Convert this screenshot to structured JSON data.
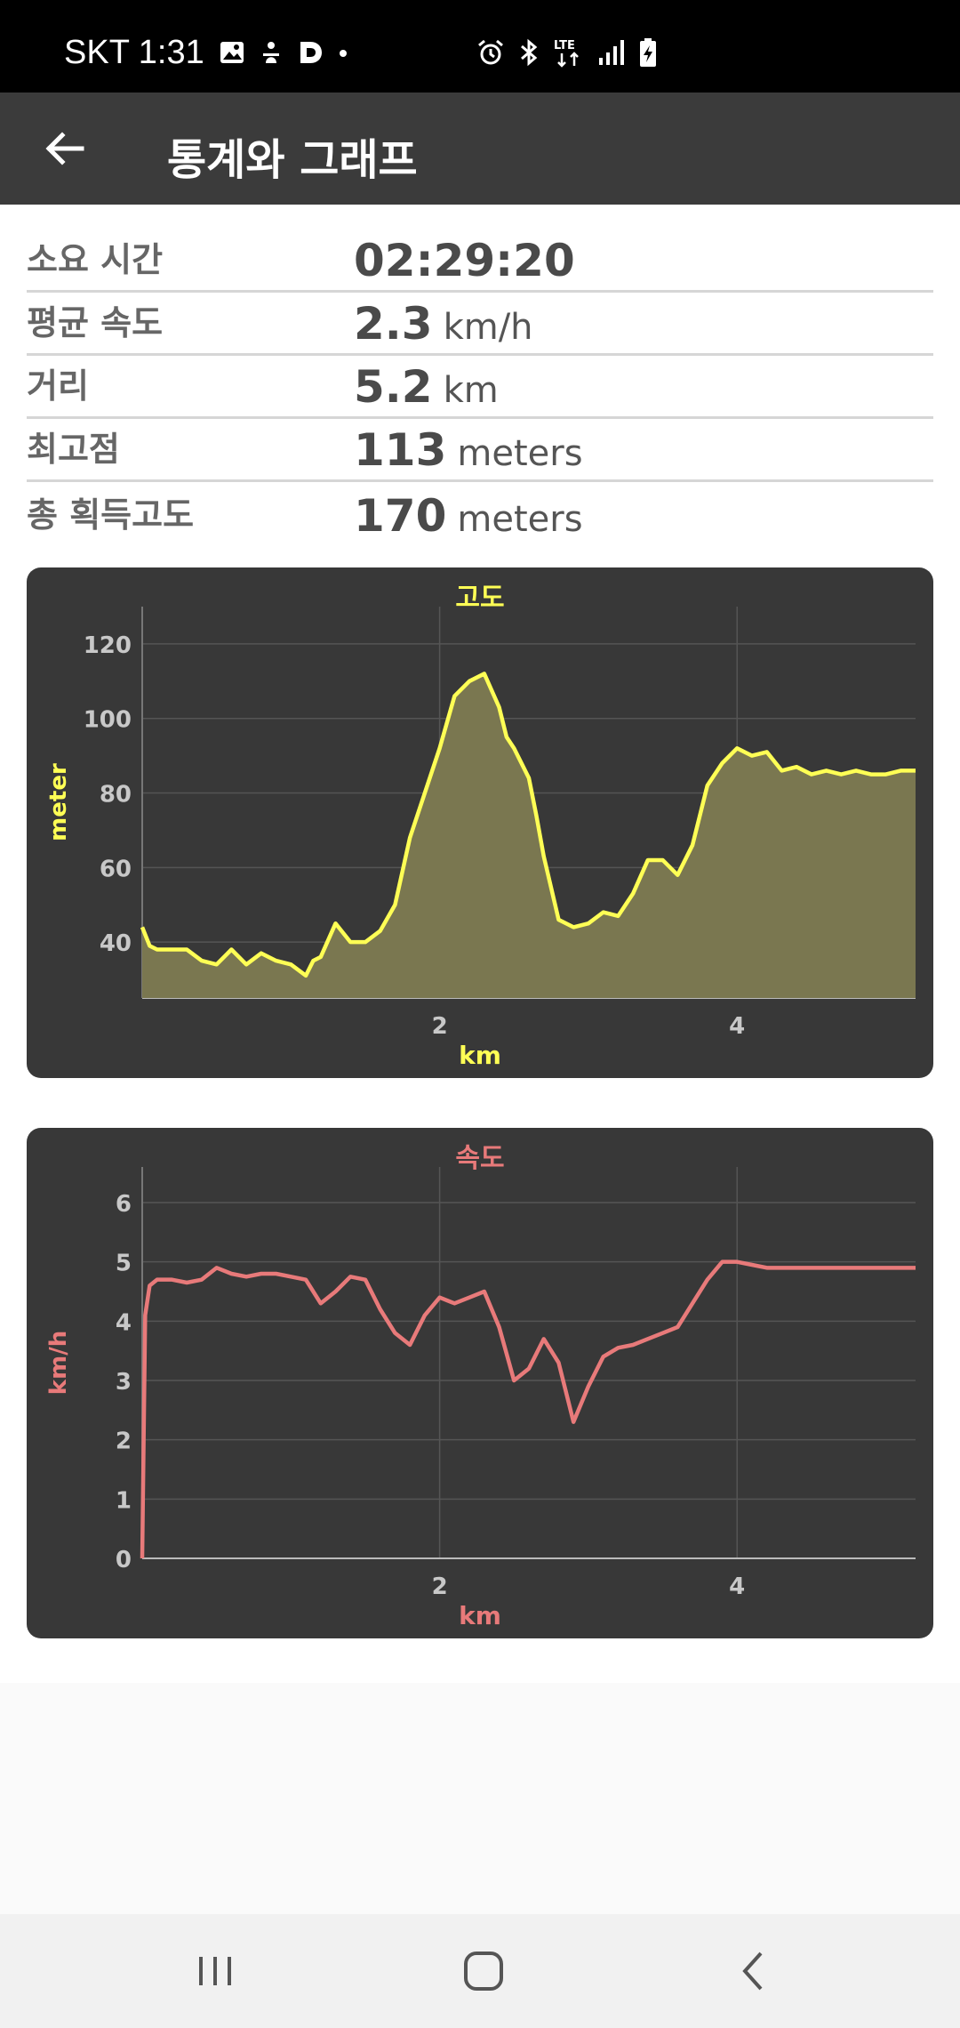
{
  "status_bar": {
    "time": "SKT 1:31",
    "left_icons": [
      "gallery-icon",
      "person-icon",
      "d-app-icon",
      "dot-icon"
    ],
    "right_icons": [
      "alarm-icon",
      "bluetooth-icon",
      "lte-icon",
      "signal-icon",
      "battery-charging-icon"
    ],
    "lte_text": "LTE"
  },
  "app_bar": {
    "back_icon": "arrow-left-icon",
    "title": "통계와 그래프",
    "background": "#3b3b3b"
  },
  "stats": [
    {
      "label": "소요 시간",
      "value": "02:29:20",
      "unit": ""
    },
    {
      "label": "평균 속도",
      "value": "2.3",
      "unit": "km/h"
    },
    {
      "label": "거리",
      "value": "5.2",
      "unit": "km"
    },
    {
      "label": "최고점",
      "value": "113",
      "unit": "meters"
    },
    {
      "label": "총 획득고도",
      "value": "170",
      "unit": "meters"
    }
  ],
  "charts": {
    "altitude": {
      "title": "고도",
      "ylabel": "meter",
      "xlabel": "km",
      "color": "#ffff55",
      "fill": "#7a7750"
    },
    "speed": {
      "title": "속도",
      "ylabel": "km/h",
      "xlabel": "km",
      "color": "#e87a7a"
    }
  },
  "chart_data": [
    {
      "type": "area",
      "title": "고도",
      "xlabel": "km",
      "ylabel": "meter",
      "xlim": [
        0,
        5.2
      ],
      "ylim": [
        25,
        130
      ],
      "xticks": [
        2,
        4
      ],
      "yticks": [
        40,
        60,
        80,
        100,
        120
      ],
      "grid": true,
      "x": [
        0,
        0.05,
        0.1,
        0.2,
        0.3,
        0.4,
        0.5,
        0.6,
        0.7,
        0.8,
        0.9,
        1.0,
        1.1,
        1.15,
        1.2,
        1.3,
        1.4,
        1.5,
        1.6,
        1.7,
        1.8,
        1.9,
        2.0,
        2.1,
        2.2,
        2.3,
        2.4,
        2.45,
        2.5,
        2.6,
        2.65,
        2.7,
        2.8,
        2.9,
        3.0,
        3.1,
        3.2,
        3.3,
        3.4,
        3.5,
        3.6,
        3.7,
        3.8,
        3.9,
        4.0,
        4.1,
        4.2,
        4.3,
        4.4,
        4.5,
        4.6,
        4.7,
        4.8,
        4.9,
        5.0,
        5.1,
        5.2
      ],
      "y": [
        44,
        39,
        38,
        38,
        38,
        35,
        34,
        38,
        34,
        37,
        35,
        34,
        31,
        35,
        36,
        45,
        40,
        40,
        43,
        50,
        68,
        80,
        92,
        106,
        110,
        112,
        103,
        95,
        92,
        84,
        74,
        63,
        46,
        44,
        45,
        48,
        47,
        53,
        62,
        62,
        58,
        66,
        82,
        88,
        92,
        90,
        91,
        86,
        87,
        85,
        86,
        85,
        86,
        85,
        85,
        86,
        86
      ],
      "series": [
        {
          "name": "고도"
        }
      ]
    },
    {
      "type": "line",
      "title": "속도",
      "xlabel": "km",
      "ylabel": "km/h",
      "xlim": [
        0,
        5.2
      ],
      "ylim": [
        0,
        6.6
      ],
      "xticks": [
        2,
        4
      ],
      "yticks": [
        0,
        1,
        2,
        3,
        4,
        5,
        6
      ],
      "grid": true,
      "x": [
        0,
        0.02,
        0.05,
        0.1,
        0.2,
        0.3,
        0.4,
        0.5,
        0.6,
        0.7,
        0.8,
        0.9,
        1.0,
        1.1,
        1.2,
        1.3,
        1.4,
        1.5,
        1.6,
        1.7,
        1.8,
        1.9,
        2.0,
        2.1,
        2.2,
        2.3,
        2.4,
        2.5,
        2.6,
        2.7,
        2.8,
        2.9,
        3.0,
        3.1,
        3.2,
        3.3,
        3.4,
        3.5,
        3.6,
        3.7,
        3.8,
        3.9,
        4.0,
        4.1,
        4.2,
        4.3,
        4.4,
        4.5,
        4.6,
        4.7,
        4.8,
        4.9,
        5.0,
        5.1,
        5.2
      ],
      "y": [
        0,
        4.1,
        4.6,
        4.7,
        4.7,
        4.65,
        4.7,
        4.9,
        4.8,
        4.75,
        4.8,
        4.8,
        4.75,
        4.7,
        4.3,
        4.5,
        4.75,
        4.7,
        4.2,
        3.8,
        3.6,
        4.1,
        4.4,
        4.3,
        4.4,
        4.5,
        3.9,
        3.0,
        3.2,
        3.7,
        3.3,
        2.3,
        2.9,
        3.4,
        3.55,
        3.6,
        3.7,
        3.8,
        3.9,
        4.3,
        4.7,
        5.0,
        5.0,
        4.95,
        4.9,
        4.9,
        4.9,
        4.9,
        4.9,
        4.9,
        4.9,
        4.9,
        4.9,
        4.9,
        4.9
      ],
      "series": [
        {
          "name": "속도"
        }
      ]
    }
  ],
  "nav_bar": {
    "icons": [
      "recent-apps-icon",
      "home-icon",
      "back-icon"
    ]
  }
}
